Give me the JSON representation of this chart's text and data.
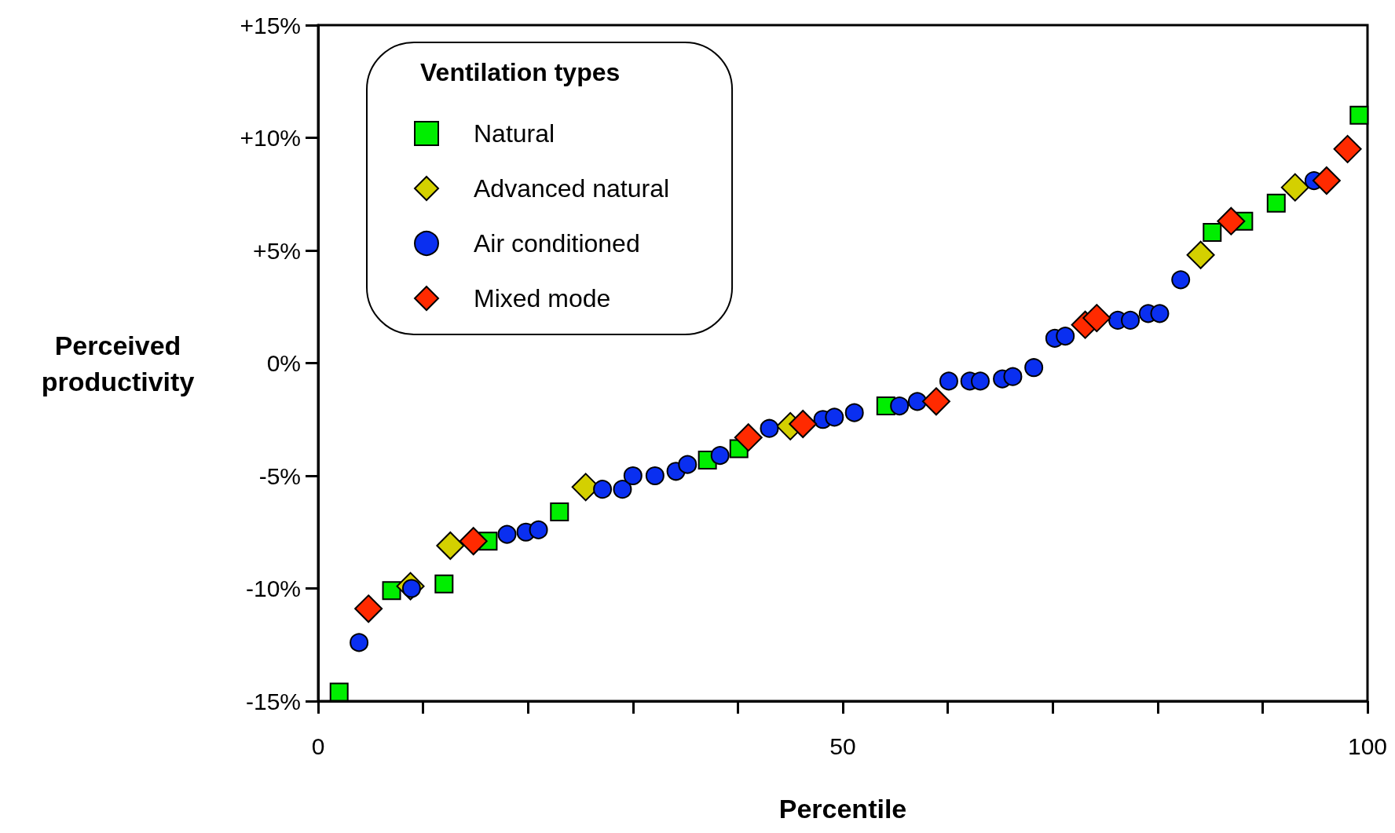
{
  "chart_data": {
    "type": "scatter",
    "xlabel": "Percentile",
    "ylabel": "Perceived productivity",
    "legend_title": "Ventilation types",
    "xlim": [
      0,
      100
    ],
    "xticks": [
      0,
      {
        "value": 10,
        "label": null
      },
      {
        "value": 20,
        "label": null
      },
      {
        "value": 30,
        "label": null
      },
      {
        "value": 40,
        "label": null
      },
      50,
      {
        "value": 60,
        "label": null
      },
      {
        "value": 70,
        "label": null
      },
      {
        "value": 80,
        "label": null
      },
      {
        "value": 90,
        "label": null
      },
      100
    ],
    "ylim": [
      -15,
      15
    ],
    "yticks": [
      {
        "value": -15,
        "label": "-15%"
      },
      {
        "value": -10,
        "label": "-10%"
      },
      {
        "value": -5,
        "label": "-5%"
      },
      {
        "value": 0,
        "label": "0%"
      },
      {
        "value": 5,
        "label": "+5%"
      },
      {
        "value": 10,
        "label": "+10%"
      },
      {
        "value": 15,
        "label": "+15%"
      }
    ],
    "grid": false,
    "legend": "top left",
    "series": [
      {
        "name": "Natural",
        "color": "#00ee00",
        "marker": "square",
        "x": [
          2.0,
          7.0,
          12.0,
          16.2,
          23.0,
          37.1,
          40.1,
          54.1,
          85.2,
          88.2,
          91.3,
          99.2
        ],
        "values": [
          -14.6,
          -10.1,
          -9.8,
          -7.9,
          -6.6,
          -4.3,
          -3.8,
          -1.9,
          5.8,
          6.3,
          7.1,
          11.0
        ]
      },
      {
        "name": "Advanced natural",
        "color": "#d4d000",
        "marker": "diamond",
        "x": [
          8.8,
          12.6,
          25.5,
          45.0,
          84.1,
          93.1
        ],
        "values": [
          -9.9,
          -8.1,
          -5.5,
          -2.8,
          4.8,
          7.8
        ]
      },
      {
        "name": "Air conditioned",
        "color": "#0a2ff0",
        "marker": "circle",
        "x": [
          3.9,
          8.9,
          18.0,
          19.8,
          21.0,
          27.1,
          29.0,
          30.0,
          32.1,
          34.1,
          35.2,
          38.3,
          43.0,
          48.1,
          49.2,
          51.1,
          55.4,
          57.1,
          60.1,
          62.1,
          63.1,
          65.2,
          66.2,
          68.2,
          70.2,
          71.2,
          76.2,
          77.4,
          79.1,
          80.2,
          82.2,
          94.9
        ],
        "values": [
          -12.4,
          -10.0,
          -7.6,
          -7.5,
          -7.4,
          -5.6,
          -5.6,
          -5.0,
          -5.0,
          -4.8,
          -4.5,
          -4.1,
          -2.9,
          -2.5,
          -2.4,
          -2.2,
          -1.9,
          -1.7,
          -0.8,
          -0.8,
          -0.8,
          -0.7,
          -0.6,
          -0.2,
          1.1,
          1.2,
          1.9,
          1.9,
          2.2,
          2.2,
          3.7,
          8.1
        ]
      },
      {
        "name": "Mixed mode",
        "color": "#ff2a00",
        "marker": "diamond",
        "x": [
          4.8,
          14.8,
          41.0,
          46.2,
          58.9,
          73.1,
          74.2,
          87.0,
          96.1,
          98.1
        ],
        "values": [
          -10.9,
          -7.9,
          -3.3,
          -2.7,
          -1.7,
          1.7,
          2.0,
          6.3,
          8.1,
          9.5
        ]
      }
    ]
  }
}
